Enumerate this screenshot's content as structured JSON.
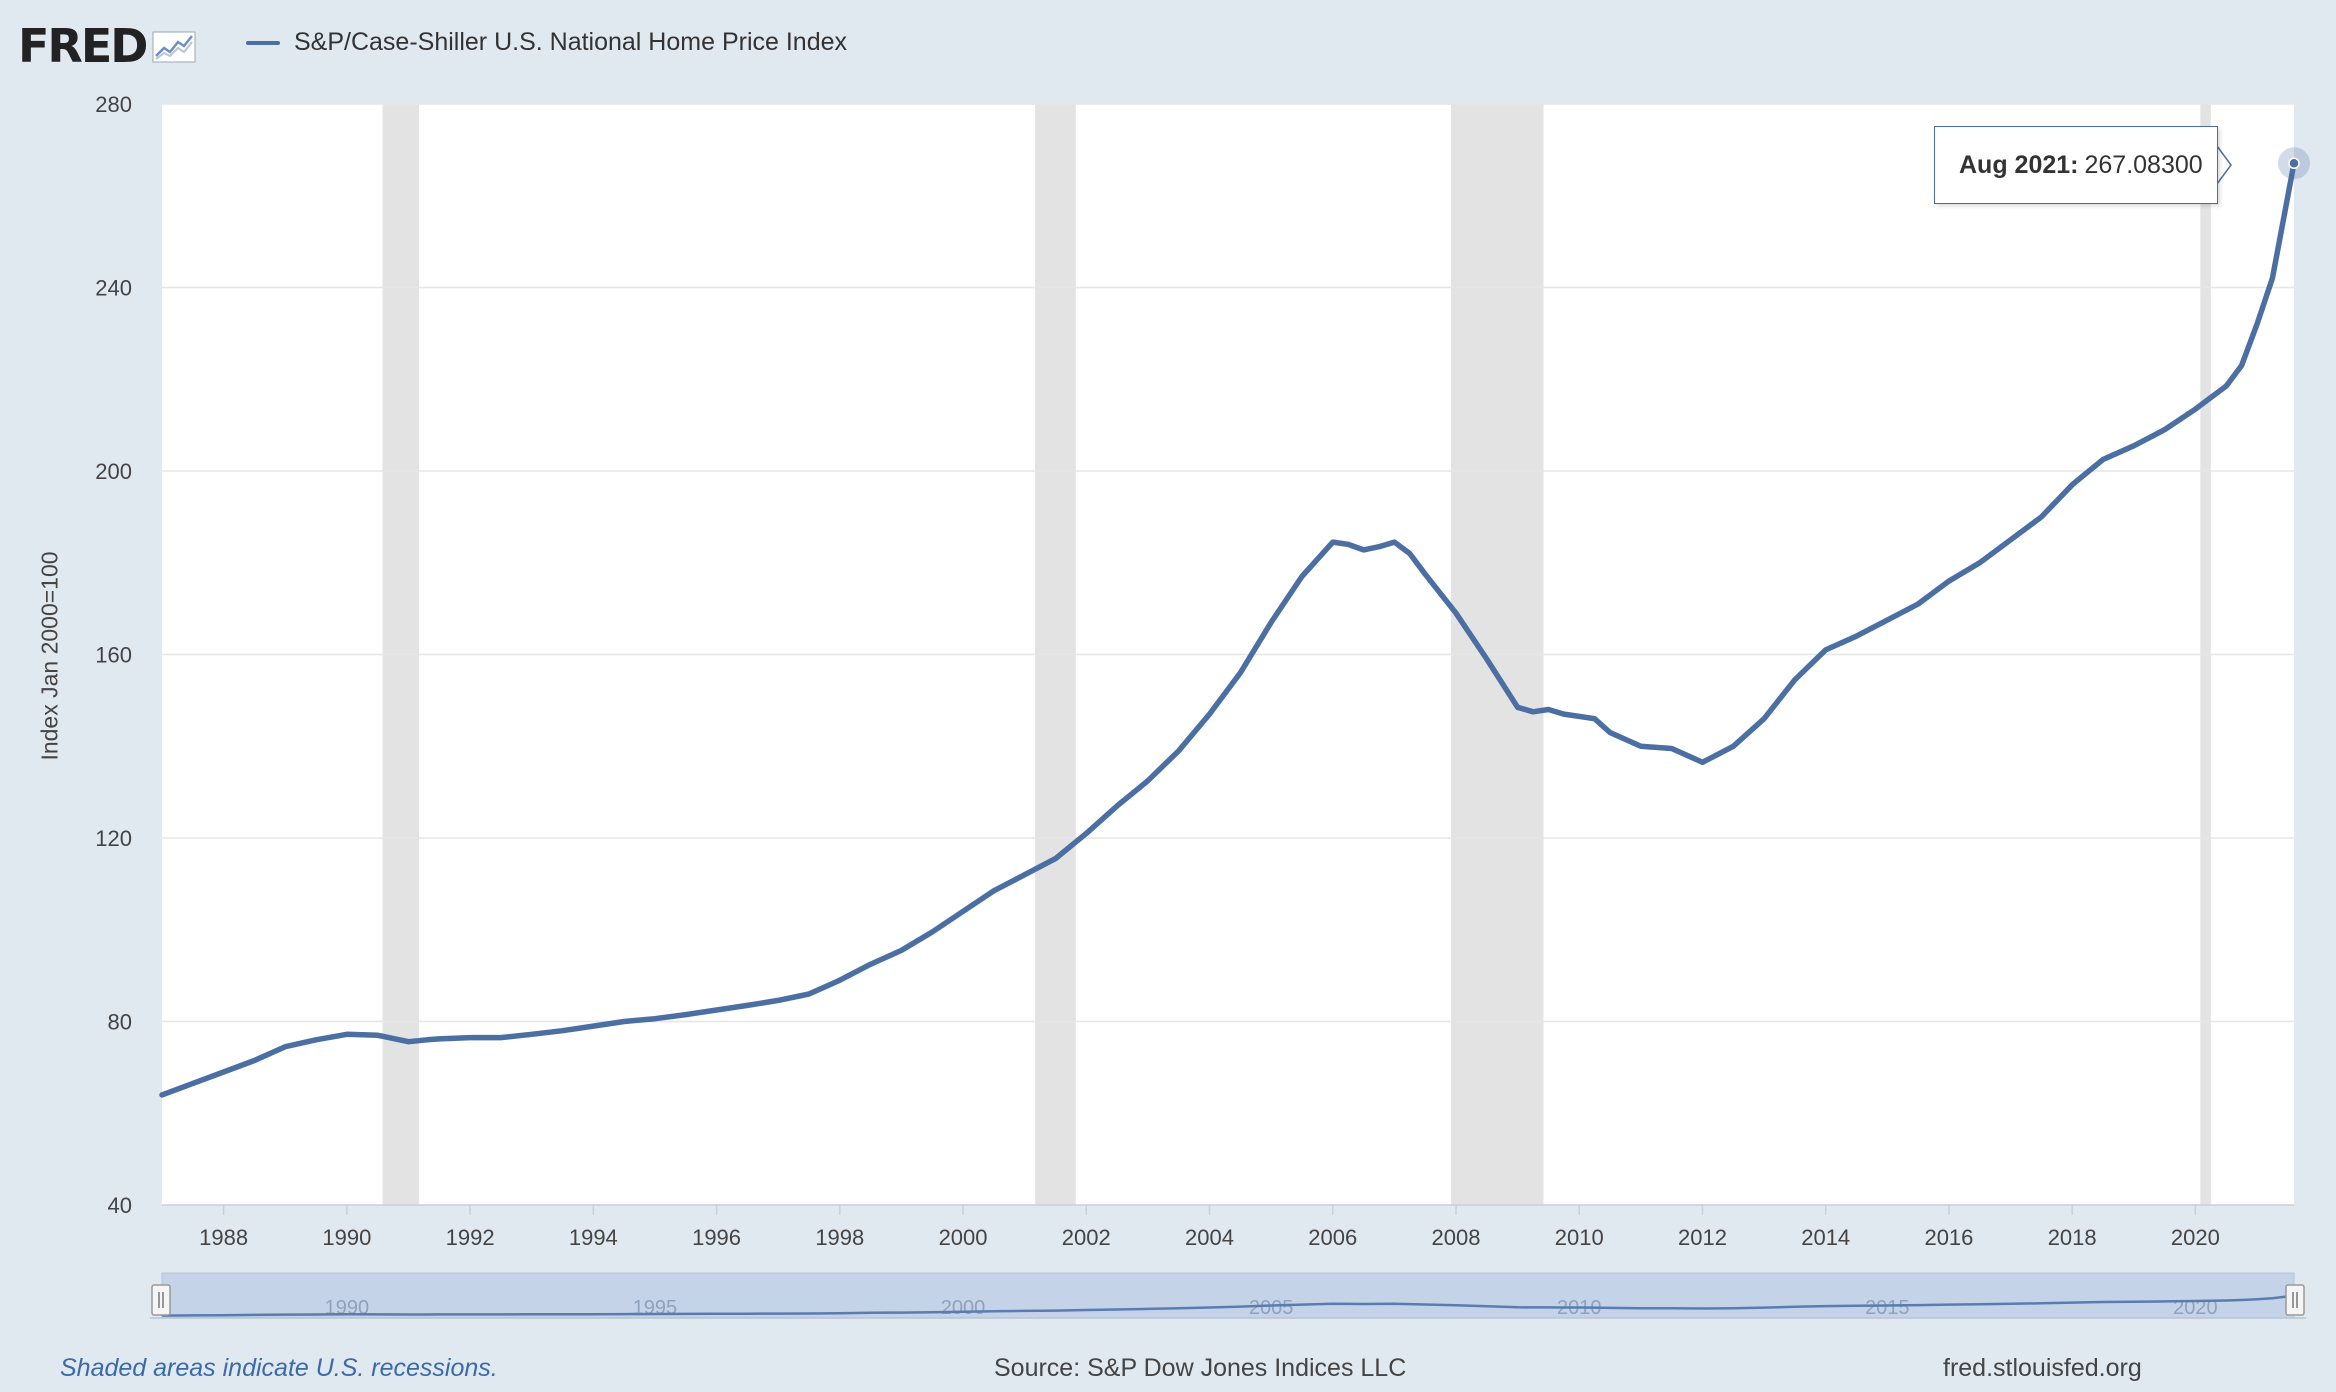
{
  "brand": {
    "logo_text": "FRED",
    "logo_icon": "chart-trend-icon"
  },
  "legend": {
    "label": "S&P/Case-Shiller U.S. National Home Price Index",
    "color": "#4b6fa2"
  },
  "tooltip": {
    "date": "Aug 2021:",
    "value": "267.08300"
  },
  "footer": {
    "note": "Shaded areas indicate U.S. recessions.",
    "source": "Source: S&P Dow Jones Indices LLC",
    "url": "fred.stlouisfed.org"
  },
  "navigator_labels": [
    "1990",
    "1995",
    "2000",
    "2005",
    "2010",
    "2015",
    "2020"
  ],
  "chart_data": {
    "type": "line",
    "title": "S&P/Case-Shiller U.S. National Home Price Index",
    "xlabel": "",
    "ylabel": "Index Jan 2000=100",
    "xlim": [
      1987.0,
      2021.6
    ],
    "ylim": [
      40,
      280
    ],
    "yticks": [
      40,
      80,
      120,
      160,
      200,
      240,
      280
    ],
    "xticks": [
      "1988",
      "1990",
      "1992",
      "1994",
      "1996",
      "1998",
      "2000",
      "2002",
      "2004",
      "2006",
      "2008",
      "2010",
      "2012",
      "2014",
      "2016",
      "2018",
      "2020"
    ],
    "recessions": [
      [
        1990.58,
        1991.17
      ],
      [
        2001.17,
        2001.83
      ],
      [
        2007.92,
        2009.42
      ],
      [
        2020.08,
        2020.25
      ]
    ],
    "series": [
      {
        "name": "S&P/Case-Shiller U.S. National Home Price Index",
        "color": "#4b6fa2",
        "x": [
          1987.0,
          1987.5,
          1988.0,
          1988.5,
          1989.0,
          1989.5,
          1990.0,
          1990.5,
          1991.0,
          1991.3,
          1991.5,
          1992.0,
          1992.5,
          1993.0,
          1993.5,
          1994.0,
          1994.5,
          1995.0,
          1995.5,
          1996.0,
          1996.5,
          1997.0,
          1997.5,
          1998.0,
          1998.5,
          1999.0,
          1999.5,
          2000.0,
          2000.5,
          2001.0,
          2001.5,
          2002.0,
          2002.5,
          2003.0,
          2003.5,
          2004.0,
          2004.5,
          2005.0,
          2005.5,
          2006.0,
          2006.25,
          2006.5,
          2006.75,
          2007.0,
          2007.25,
          2007.5,
          2008.0,
          2008.5,
          2009.0,
          2009.25,
          2009.5,
          2009.75,
          2010.0,
          2010.25,
          2010.5,
          2011.0,
          2011.5,
          2012.0,
          2012.5,
          2013.0,
          2013.5,
          2014.0,
          2014.5,
          2015.0,
          2015.5,
          2016.0,
          2016.5,
          2017.0,
          2017.5,
          2018.0,
          2018.5,
          2019.0,
          2019.5,
          2020.0,
          2020.5,
          2020.75,
          2021.0,
          2021.25,
          2021.6
        ],
        "values": [
          64.0,
          66.5,
          69.0,
          71.5,
          74.5,
          76.0,
          77.2,
          77.0,
          75.6,
          76.0,
          76.2,
          76.5,
          76.5,
          77.2,
          78.0,
          79.0,
          80.0,
          80.6,
          81.5,
          82.5,
          83.5,
          84.6,
          86.0,
          89.0,
          92.5,
          95.5,
          99.5,
          104.0,
          108.5,
          112.0,
          115.5,
          121.0,
          127.0,
          132.5,
          139.0,
          147.0,
          156.0,
          167.0,
          177.0,
          184.5,
          184.0,
          182.8,
          183.5,
          184.5,
          182.0,
          177.5,
          169.0,
          159.0,
          148.5,
          147.5,
          148.0,
          147.0,
          146.5,
          146.0,
          143.0,
          140.0,
          139.5,
          136.5,
          140.0,
          146.0,
          154.5,
          161.0,
          164.0,
          167.5,
          171.0,
          176.0,
          180.0,
          185.0,
          190.0,
          197.0,
          202.5,
          205.5,
          209.0,
          213.5,
          218.5,
          223.0,
          232.0,
          242.0,
          267.083
        ]
      }
    ]
  }
}
